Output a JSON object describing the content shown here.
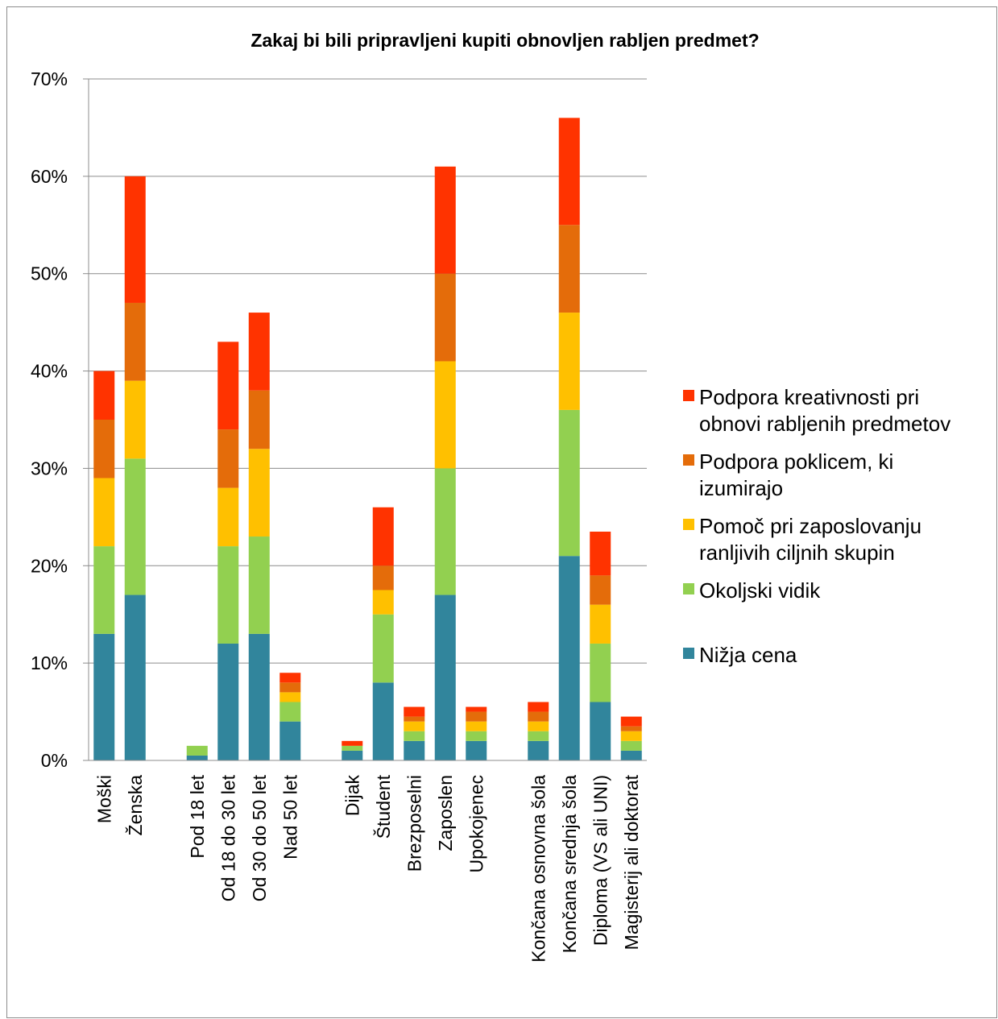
{
  "chart_data": {
    "type": "bar",
    "stacked": true,
    "title": "Zakaj bi bili pripravljeni kupiti obnovljen rabljen predmet?",
    "xlabel": "",
    "ylabel": "",
    "ylim": [
      0,
      70
    ],
    "yticks": [
      "0%",
      "10%",
      "20%",
      "30%",
      "40%",
      "50%",
      "60%",
      "70%"
    ],
    "grid": true,
    "legend_position": "right",
    "categories": [
      "Moški",
      "Ženska",
      "",
      "Pod 18 let",
      "Od 18 do 30 let",
      "Od 30 do 50 let",
      "Nad 50 let",
      "",
      "Dijak",
      "Študent",
      "Brezposelni",
      "Zaposlen",
      "Upokojenec",
      "",
      "Končana osnovna šola",
      "Končana srednja šola",
      "Diploma (VS ali UNI)",
      "Magisterij ali doktorat"
    ],
    "series": [
      {
        "name": "Nižja cena",
        "color": "#31859c",
        "values": [
          13,
          17,
          null,
          0.5,
          12,
          13,
          4,
          null,
          1,
          8,
          2,
          17,
          2,
          null,
          2,
          21,
          6,
          1
        ]
      },
      {
        "name": "Okoljski vidik",
        "color": "#92d050",
        "values": [
          9,
          14,
          null,
          1,
          10,
          10,
          2,
          null,
          0.5,
          7,
          1,
          13,
          1,
          null,
          1,
          15,
          6,
          1
        ]
      },
      {
        "name": "Pomoč pri zaposlovanju ranljivih ciljnih skupin",
        "color": "#ffc000",
        "values": [
          7,
          8,
          null,
          0,
          6,
          9,
          1,
          null,
          0,
          2.5,
          1,
          11,
          1,
          null,
          1,
          10,
          4,
          1
        ]
      },
      {
        "name": "Podpora poklicem, ki izumirajo",
        "color": "#e46c0a",
        "values": [
          6,
          8,
          null,
          0,
          6,
          6,
          1,
          null,
          0,
          2.5,
          0.5,
          9,
          1,
          null,
          1,
          9,
          3,
          0.5
        ]
      },
      {
        "name": "Podpora kreativnosti pri obnovi rabljenih predmetov",
        "color": "#ff3300",
        "values": [
          5,
          13,
          null,
          0,
          9,
          8,
          1,
          null,
          0.5,
          6,
          1,
          11,
          0.5,
          null,
          1,
          11,
          4.5,
          1
        ]
      }
    ]
  },
  "legend": [
    {
      "lines": [
        "Podpora kreativnosti pri",
        "obnovi rabljenih predmetov"
      ],
      "color": "#ff3300"
    },
    {
      "lines": [
        "Podpora poklicem, ki",
        "izumirajo"
      ],
      "color": "#e46c0a"
    },
    {
      "lines": [
        "Pomoč pri zaposlovanju",
        "ranljivih ciljnih skupin"
      ],
      "color": "#ffc000"
    },
    {
      "lines": [
        "Okoljski vidik"
      ],
      "color": "#92d050"
    },
    {
      "lines": [
        "Nižja cena"
      ],
      "color": "#31859c"
    }
  ]
}
